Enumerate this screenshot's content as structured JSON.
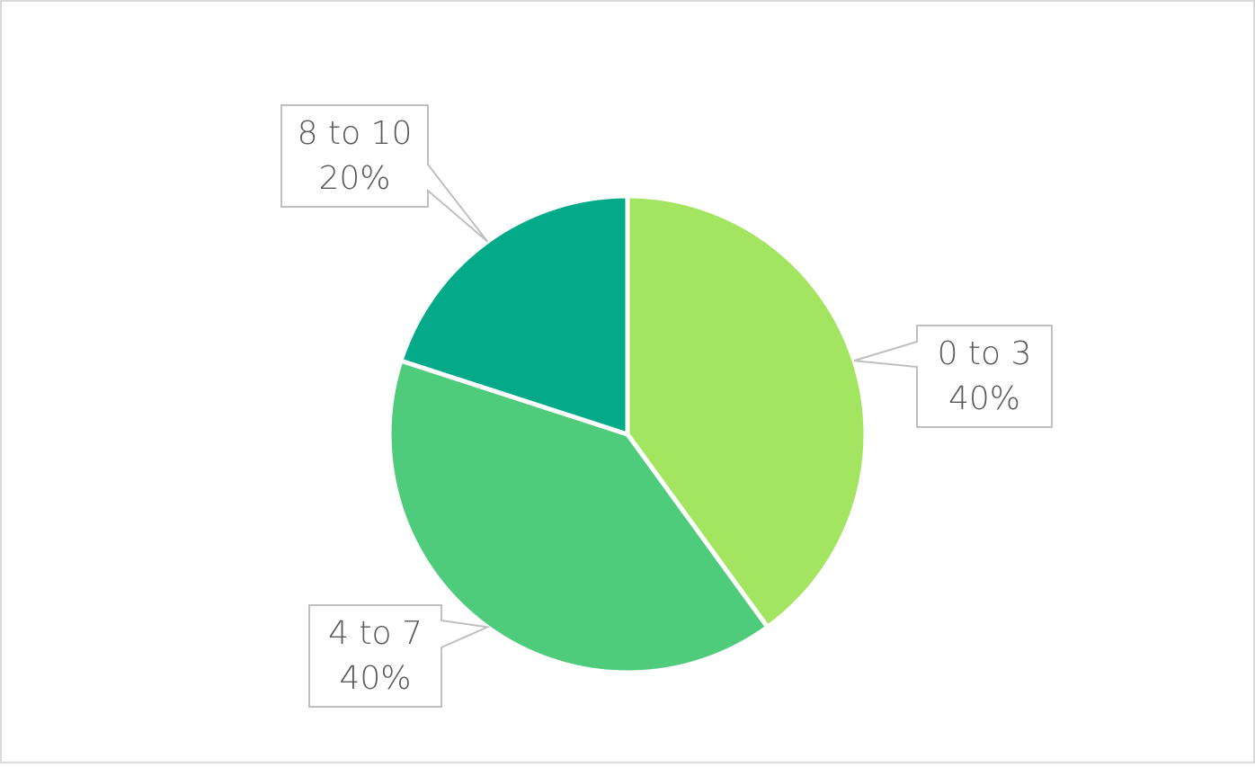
{
  "chart_data": {
    "type": "pie",
    "categories": [
      "0 to 3",
      "4 to 7",
      "8 to 10"
    ],
    "values": [
      40,
      40,
      20
    ],
    "value_labels": [
      "40%",
      "40%",
      "20%"
    ],
    "colors": [
      "#a3e460",
      "#4fcb7c",
      "#02aa8a"
    ]
  }
}
